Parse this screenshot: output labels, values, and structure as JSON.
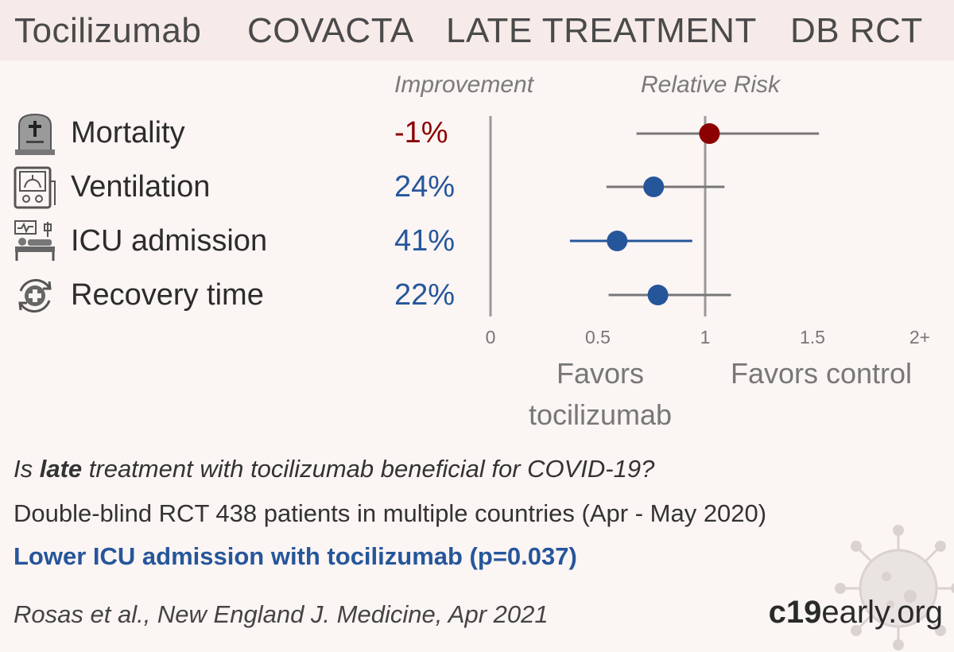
{
  "title": {
    "drug": "Tocilizumab",
    "trial": "COVACTA",
    "stage": "LATE TREATMENT",
    "design": "DB RCT"
  },
  "columns": {
    "improvement": "Improvement",
    "relative_risk": "Relative Risk"
  },
  "colors": {
    "harm": "#8b0000",
    "benefit": "#26569a",
    "line": "#777777"
  },
  "outcomes": [
    {
      "label": "Mortality",
      "improvement": "-1%",
      "icon": "tombstone-icon",
      "status": "harm"
    },
    {
      "label": "Ventilation",
      "improvement": "24%",
      "icon": "ventilator-icon",
      "status": "benefit"
    },
    {
      "label": "ICU admission",
      "improvement": "41%",
      "icon": "hospital-bed-icon",
      "status": "benefit"
    },
    {
      "label": "Recovery time",
      "improvement": "22%",
      "icon": "recovery-icon",
      "status": "benefit"
    }
  ],
  "chart_data": {
    "type": "scatter",
    "title": "",
    "xlabel": "Relative Risk",
    "xlim": [
      0,
      2
    ],
    "x_ticks": [
      {
        "value": 0,
        "label": "0"
      },
      {
        "value": 0.5,
        "label": "0.5"
      },
      {
        "value": 1,
        "label": "1"
      },
      {
        "value": 1.5,
        "label": "1.5"
      },
      {
        "value": 2,
        "label": "2+"
      }
    ],
    "categories": [
      "Mortality",
      "Ventilation",
      "ICU admission",
      "Recovery time"
    ],
    "series": [
      {
        "points": [
          {
            "rr": 1.02,
            "ci": [
              0.68,
              1.53
            ]
          },
          {
            "rr": 0.76,
            "ci": [
              0.54,
              1.09
            ]
          },
          {
            "rr": 0.59,
            "ci": [
              0.37,
              0.94
            ]
          },
          {
            "rr": 0.78,
            "ci": [
              0.55,
              1.12
            ]
          }
        ]
      }
    ],
    "favors_left": "Favors tocilizumab",
    "favors_right": "Favors control"
  },
  "summary": {
    "question_pre": "Is ",
    "question_bold": "late",
    "question_post": " treatment with tocilizumab beneficial for COVID-19?",
    "design": "Double-blind RCT 438 patients in multiple countries (Apr - May 2020)",
    "finding": "Lower ICU admission with tocilizumab (p=0.037)",
    "citation": "Rosas et al., New England J. Medicine, Apr 2021"
  },
  "brand": {
    "part1": "c19",
    "part2": "early.org"
  }
}
